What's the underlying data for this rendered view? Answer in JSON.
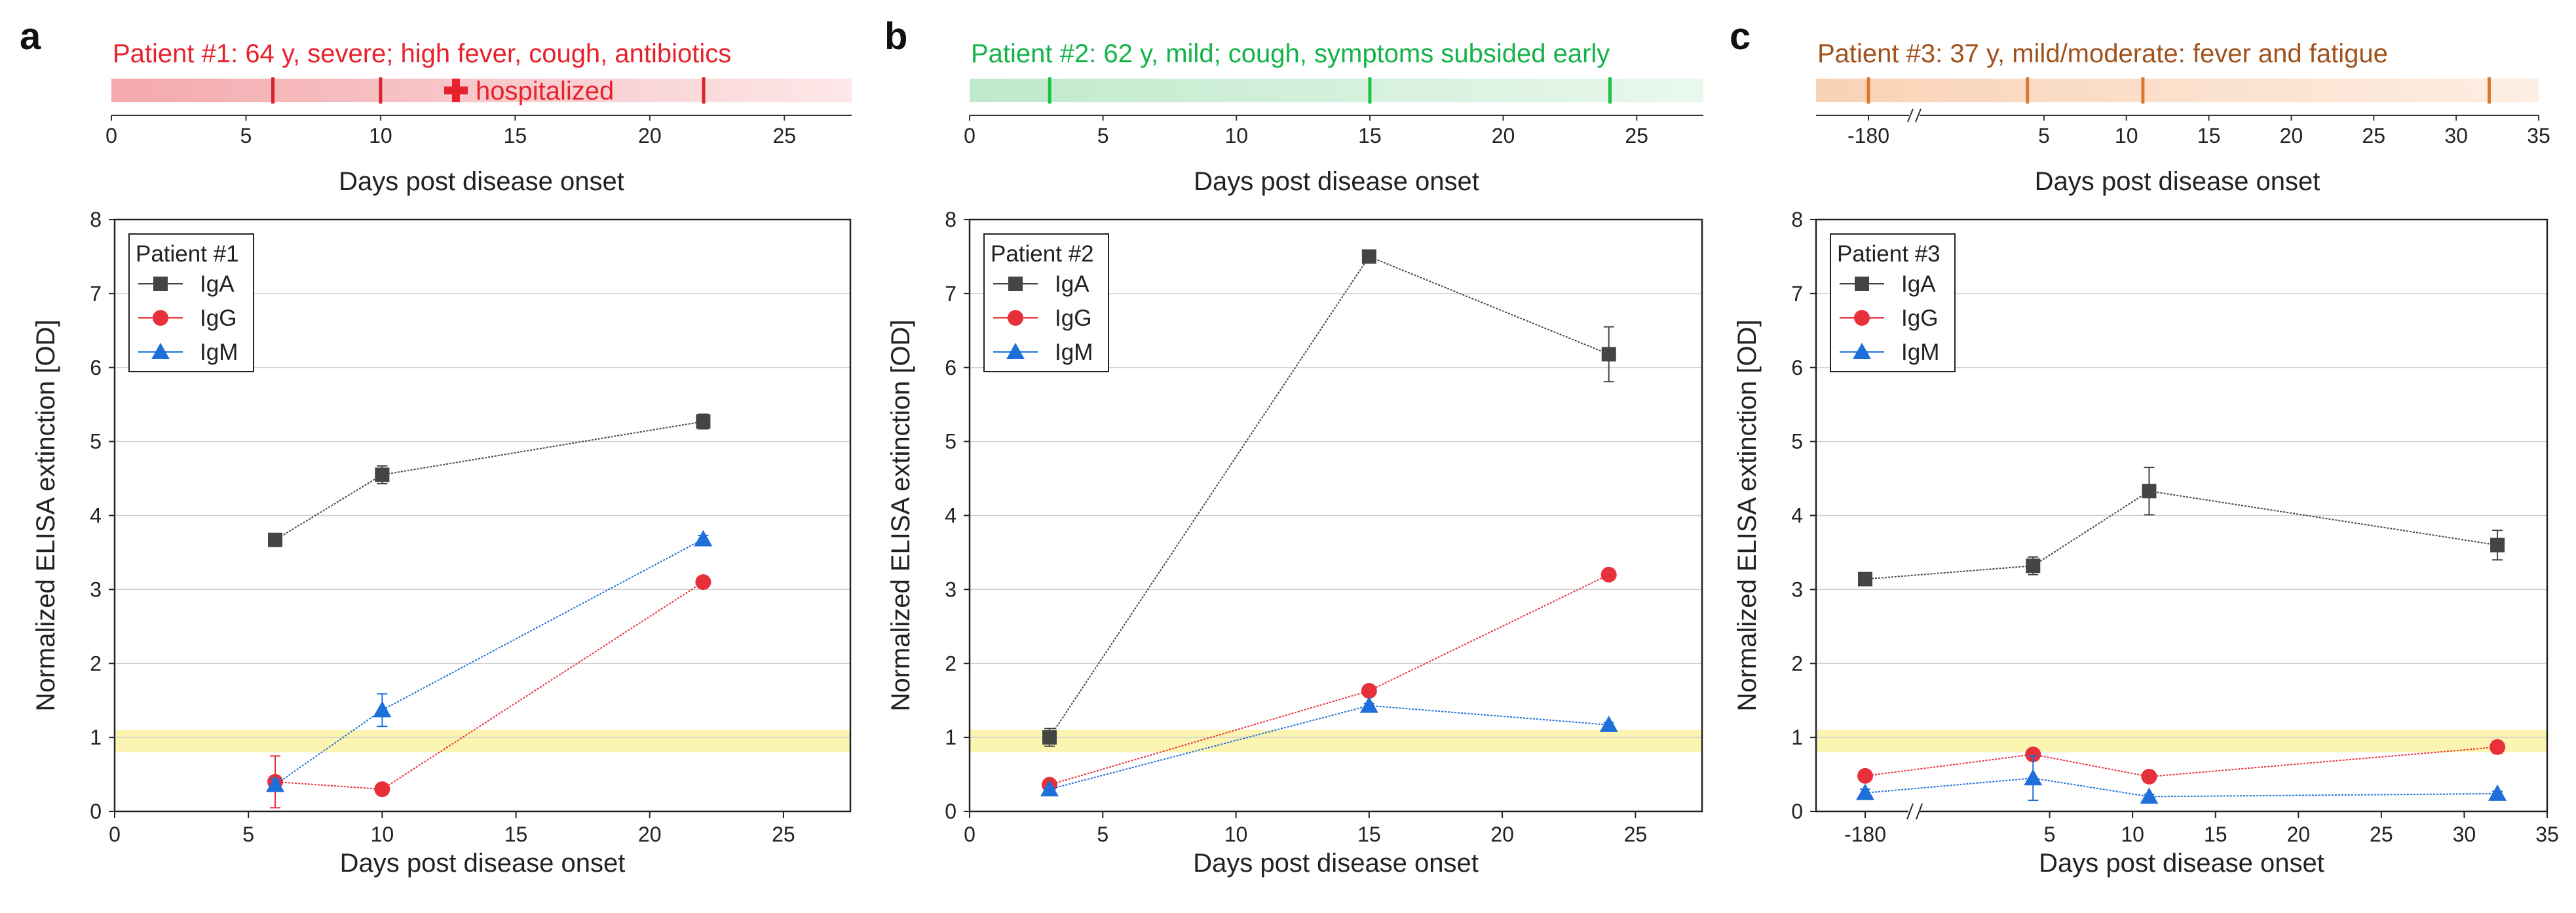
{
  "panels": [
    {
      "letter": "a",
      "timeline": {
        "title": "Patient #1: 64 y, severe; high fever, cough, antibiotics",
        "color": "#e8222d",
        "bar_color": "#f7c9cb",
        "marker_color": "#d8232a",
        "marker_days": [
          6,
          10,
          22
        ],
        "hosp_label": "hospitalized",
        "hosp_day": 12.8,
        "xlabel": "Days post disease onset",
        "ticks": [
          "0",
          "5",
          "10",
          "15",
          "20",
          "25"
        ]
      },
      "chart_data": {
        "type": "line",
        "legend_title": "Patient #1",
        "xlabel": "Days post disease onset",
        "ylabel": "Normalized ELISA extinction [OD]",
        "x_ticks": [
          "0",
          "5",
          "10",
          "15",
          "20",
          "25"
        ],
        "y_ticks": [
          "0",
          "1",
          "2",
          "3",
          "4",
          "5",
          "6",
          "7",
          "8"
        ],
        "ylim": [
          0,
          8
        ],
        "threshold_band": [
          0.8,
          1.1
        ],
        "series": [
          {
            "name": "IgA",
            "color": "#444444",
            "marker": "square",
            "x": [
              6,
              10,
              22
            ],
            "values": [
              3.67,
              4.55,
              5.27
            ],
            "err": [
              0.05,
              0.12,
              0.1
            ]
          },
          {
            "name": "IgG",
            "color": "#e8303a",
            "marker": "circle",
            "x": [
              6,
              10,
              22
            ],
            "values": [
              0.4,
              0.3,
              3.1
            ],
            "err": [
              0.35,
              0.05,
              0.05
            ]
          },
          {
            "name": "IgM",
            "color": "#1e6fd9",
            "marker": "triangle",
            "x": [
              6,
              10,
              22
            ],
            "values": [
              0.36,
              1.37,
              3.68
            ],
            "err": [
              0.08,
              0.22,
              0.05
            ]
          }
        ]
      }
    },
    {
      "letter": "b",
      "timeline": {
        "title": "Patient #2: 62 y, mild; cough, symptoms subsided early",
        "color": "#14b348",
        "bar_color": "#cdeed7",
        "marker_color": "#1cc245",
        "marker_days": [
          3,
          15,
          24
        ],
        "xlabel": "Days post disease onset",
        "ticks": [
          "0",
          "5",
          "10",
          "15",
          "20",
          "25"
        ]
      },
      "chart_data": {
        "type": "line",
        "legend_title": "Patient #2",
        "xlabel": "Days post disease onset",
        "ylabel": "Normalized ELISA extinction [OD]",
        "x_ticks": [
          "0",
          "5",
          "10",
          "15",
          "20",
          "25"
        ],
        "y_ticks": [
          "0",
          "1",
          "2",
          "3",
          "4",
          "5",
          "6",
          "7",
          "8"
        ],
        "ylim": [
          0,
          8
        ],
        "threshold_band": [
          0.8,
          1.1
        ],
        "series": [
          {
            "name": "IgA",
            "color": "#444444",
            "marker": "square",
            "x": [
              3,
              15,
              24
            ],
            "values": [
              1.0,
              7.5,
              6.18
            ],
            "err": [
              0.12,
              0.03,
              0.37
            ]
          },
          {
            "name": "IgG",
            "color": "#e8303a",
            "marker": "circle",
            "x": [
              3,
              15,
              24
            ],
            "values": [
              0.36,
              1.63,
              3.2
            ],
            "err": [
              0.03,
              0.04,
              0.04
            ]
          },
          {
            "name": "IgM",
            "color": "#1e6fd9",
            "marker": "triangle",
            "x": [
              3,
              15,
              24
            ],
            "values": [
              0.3,
              1.43,
              1.17
            ],
            "err": [
              0.02,
              0.03,
              0.03
            ]
          }
        ]
      }
    },
    {
      "letter": "c",
      "timeline": {
        "title": "Patient #3: 37 y, mild/moderate: fever and fatigue",
        "color": "#a0521c",
        "bar_color": "#fbe1cd",
        "marker_color": "#d9782e",
        "marker_days": [
          -180,
          4,
          11,
          32
        ],
        "xlabel": "Days post disease onset",
        "ticks": [
          "-180",
          "5",
          "10",
          "15",
          "20",
          "25",
          "30",
          "35"
        ]
      },
      "chart_data": {
        "type": "line",
        "legend_title": "Patient #3",
        "xlabel": "Days post disease onset",
        "ylabel": "Normalized ELISA extinction [OD]",
        "x_ticks": [
          "-180",
          "5",
          "10",
          "15",
          "20",
          "25",
          "30",
          "35"
        ],
        "y_ticks": [
          "0",
          "1",
          "2",
          "3",
          "4",
          "5",
          "6",
          "7",
          "8"
        ],
        "ylim": [
          0,
          8
        ],
        "threshold_band": [
          0.8,
          1.1
        ],
        "axis_break": true,
        "series": [
          {
            "name": "IgA",
            "color": "#444444",
            "marker": "square",
            "x": [
              -180,
              4,
              11,
              32
            ],
            "values": [
              3.14,
              3.32,
              4.33,
              3.6
            ],
            "err": [
              0.05,
              0.12,
              0.32,
              0.2
            ]
          },
          {
            "name": "IgG",
            "color": "#e8303a",
            "marker": "circle",
            "x": [
              -180,
              4,
              11,
              32
            ],
            "values": [
              0.48,
              0.77,
              0.47,
              0.87
            ],
            "err": [
              0.04,
              0.05,
              0.04,
              0.08
            ]
          },
          {
            "name": "IgM",
            "color": "#1e6fd9",
            "marker": "triangle",
            "x": [
              -180,
              4,
              11,
              32
            ],
            "values": [
              0.25,
              0.45,
              0.2,
              0.24
            ],
            "err": [
              0.05,
              0.3,
              0.03,
              0.03
            ]
          }
        ]
      }
    }
  ]
}
